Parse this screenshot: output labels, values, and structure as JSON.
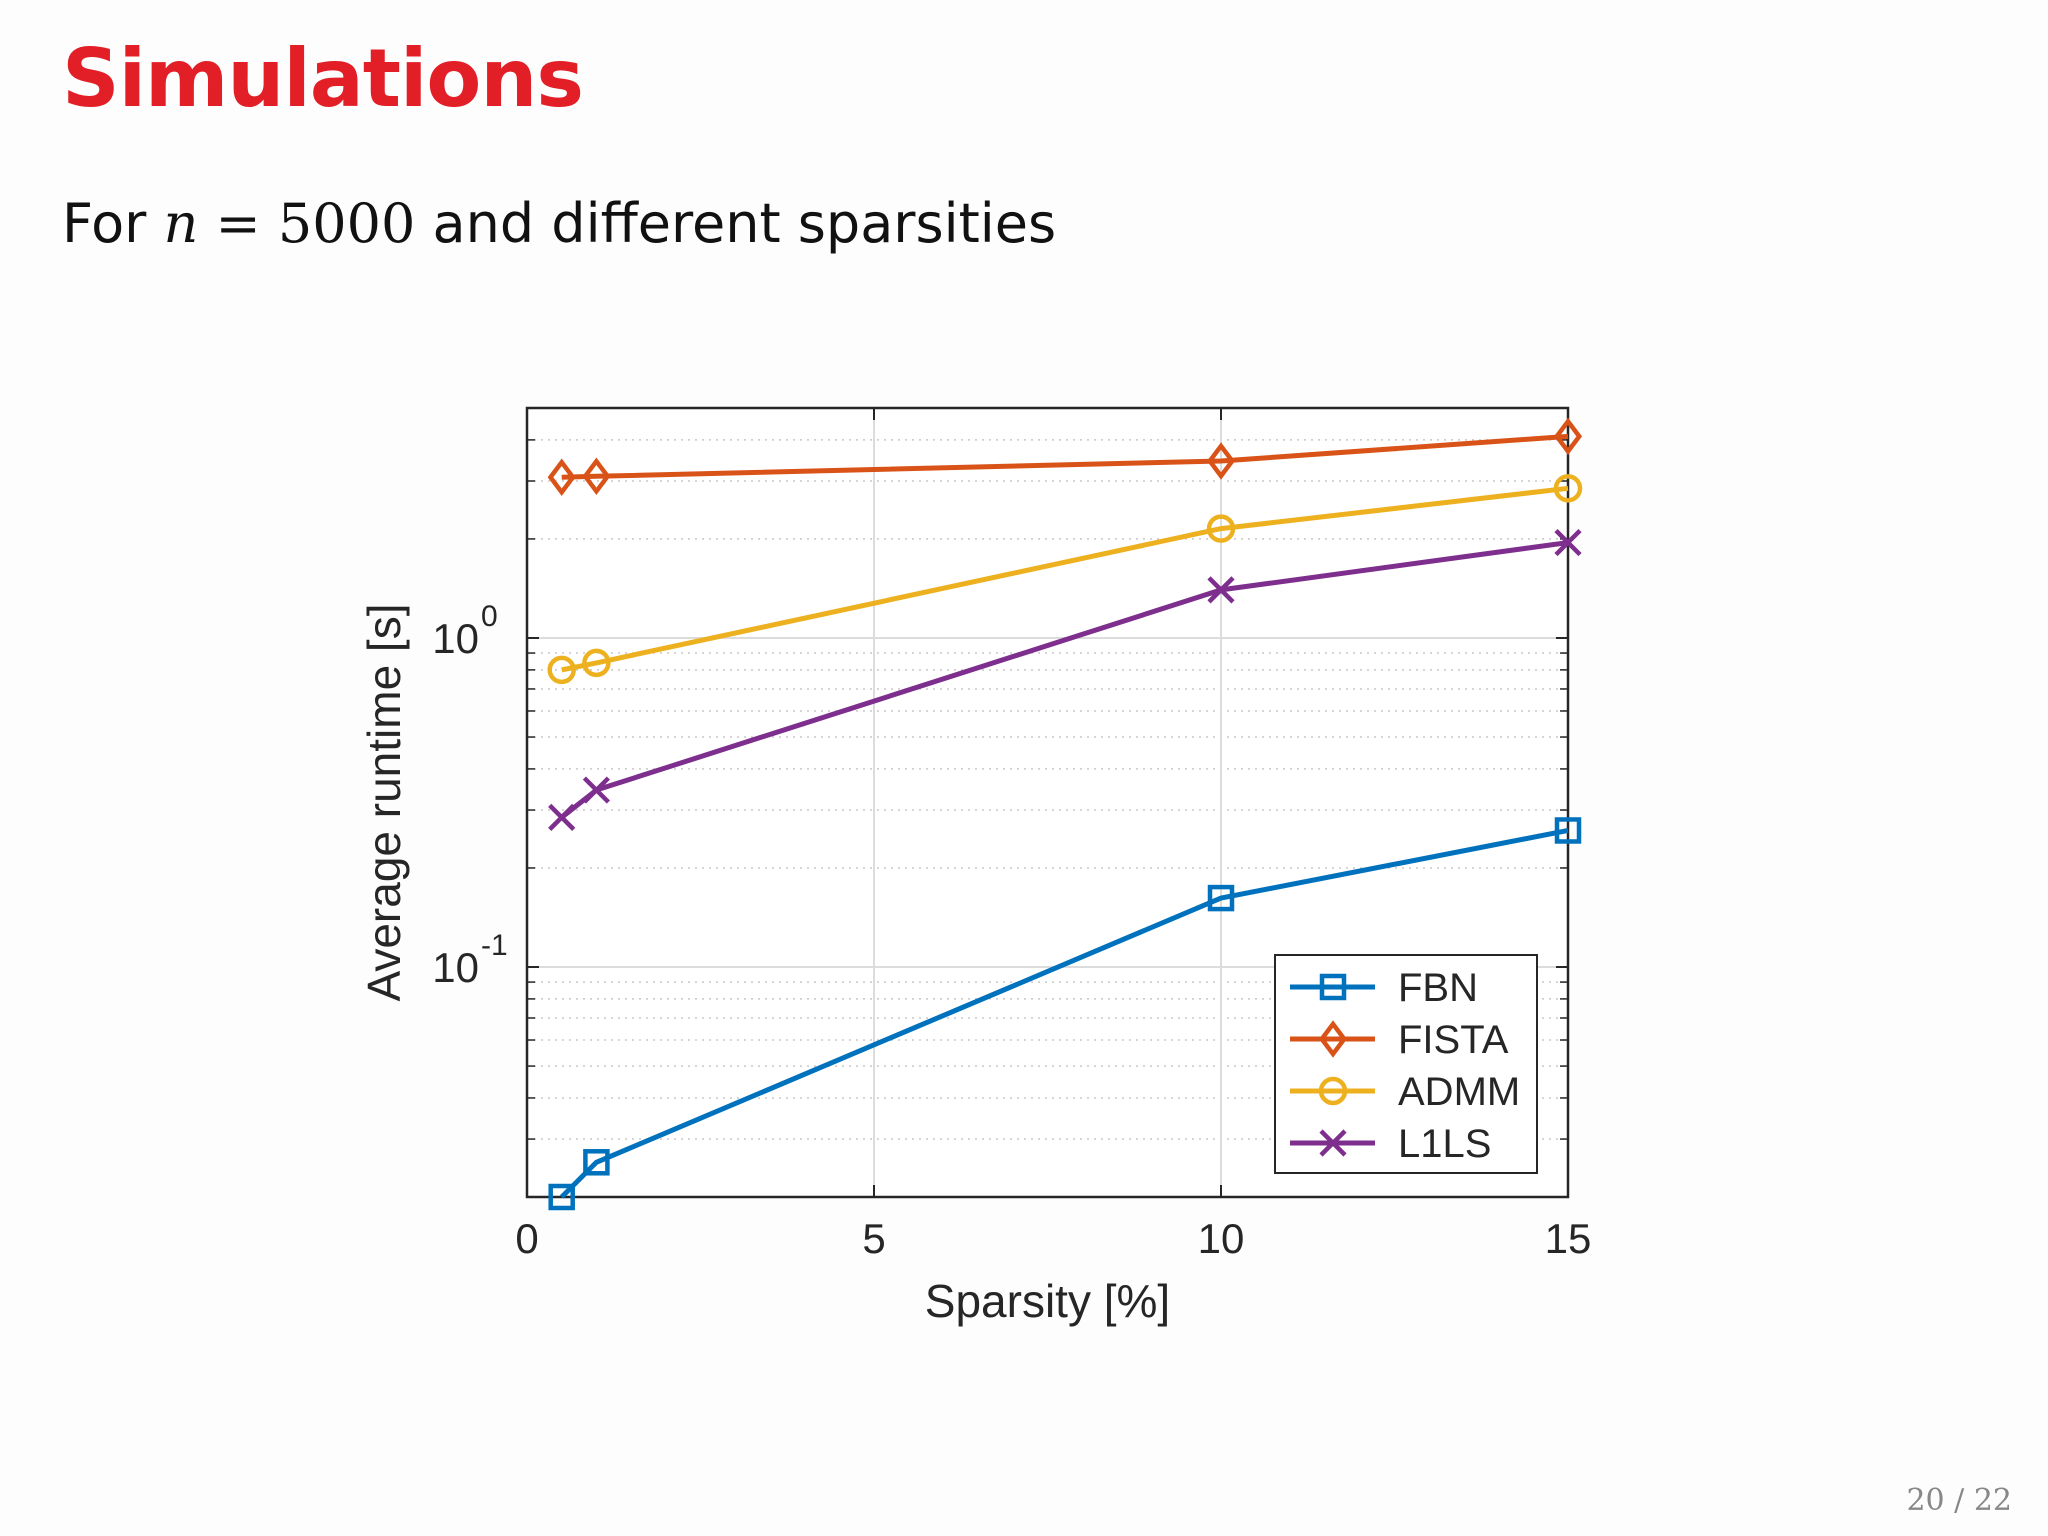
{
  "slide": {
    "title": "Simulations",
    "subtitle_prefix": "For",
    "subtitle_var": "n",
    "subtitle_eq": "=",
    "subtitle_num": "5000",
    "subtitle_suffix": "and different sparsities",
    "page": "20 / 22"
  },
  "colors": {
    "title": "#e21e26",
    "FBN": "#0072bd",
    "FISTA": "#d95319",
    "ADMM": "#edb120",
    "L1LS": "#7e2f8e"
  },
  "chart_data": {
    "type": "line",
    "xlabel": "Sparsity [%]",
    "ylabel": "Average runtime [s]",
    "xlim": [
      0,
      15
    ],
    "ylim": [
      0.02,
      5
    ],
    "yscale": "log",
    "xticks": [
      0,
      5,
      10,
      15
    ],
    "xtick_labels": [
      "0",
      "5",
      "10",
      "15"
    ],
    "yticks": [
      0.1,
      1
    ],
    "ytick_labels": [
      {
        "base": "10",
        "exp": "-1"
      },
      {
        "base": "10",
        "exp": "0"
      }
    ],
    "grid": true,
    "legend_position": "bottom-right",
    "x": [
      0.5,
      1,
      10,
      15
    ],
    "series": [
      {
        "name": "FBN",
        "marker": "square",
        "values": [
          0.02,
          0.0255,
          0.162,
          0.26
        ]
      },
      {
        "name": "FISTA",
        "marker": "diamond",
        "values": [
          3.08,
          3.1,
          3.45,
          4.1
        ]
      },
      {
        "name": "ADMM",
        "marker": "circle",
        "values": [
          0.8,
          0.84,
          2.15,
          2.85
        ]
      },
      {
        "name": "L1LS",
        "marker": "x",
        "values": [
          0.285,
          0.345,
          1.4,
          1.95
        ]
      }
    ]
  }
}
